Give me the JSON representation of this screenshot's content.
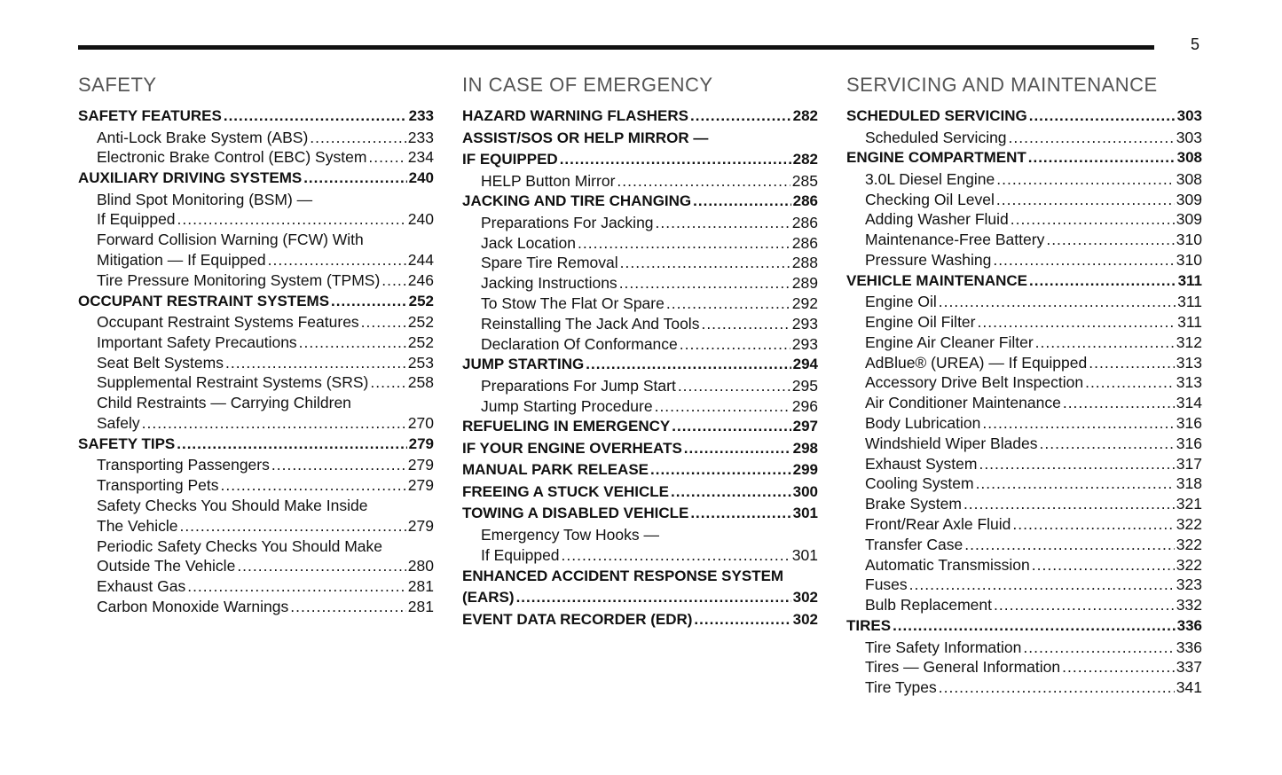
{
  "page_number": "5",
  "columns": [
    {
      "title": "SAFETY",
      "lines": [
        {
          "text": "SAFETY FEATURES",
          "page": "233",
          "bold": true
        },
        {
          "text": "Anti-Lock Brake System (ABS)",
          "page": "233",
          "indent": true
        },
        {
          "text": "Electronic Brake Control (EBC) System",
          "page": "234",
          "indent": true
        },
        {
          "text": "AUXILIARY DRIVING SYSTEMS",
          "page": "240",
          "bold": true
        },
        {
          "text": "Blind Spot Monitoring (BSM) —",
          "indent": true
        },
        {
          "text": "If Equipped",
          "page": "240",
          "indent": true
        },
        {
          "text": "Forward Collision Warning (FCW) With",
          "indent": true
        },
        {
          "text": "Mitigation — If Equipped",
          "page": "244",
          "indent": true
        },
        {
          "text": "Tire Pressure Monitoring System (TPMS)",
          "page": "246",
          "indent": true
        },
        {
          "text": "OCCUPANT RESTRAINT SYSTEMS",
          "page": "252",
          "bold": true
        },
        {
          "text": "Occupant Restraint Systems Features",
          "page": "252",
          "indent": true
        },
        {
          "text": "Important Safety Precautions",
          "page": "252",
          "indent": true
        },
        {
          "text": "Seat Belt Systems",
          "page": "253",
          "indent": true
        },
        {
          "text": "Supplemental Restraint Systems (SRS)",
          "page": "258",
          "indent": true
        },
        {
          "text": "Child Restraints — Carrying Children",
          "indent": true
        },
        {
          "text": "Safely",
          "page": "270",
          "indent": true
        },
        {
          "text": "SAFETY TIPS",
          "page": "279",
          "bold": true
        },
        {
          "text": "Transporting Passengers",
          "page": "279",
          "indent": true
        },
        {
          "text": "Transporting Pets",
          "page": "279",
          "indent": true
        },
        {
          "text": "Safety Checks You Should Make Inside",
          "indent": true
        },
        {
          "text": "The Vehicle",
          "page": "279",
          "indent": true
        },
        {
          "text": "Periodic Safety Checks You Should Make",
          "indent": true
        },
        {
          "text": "Outside The Vehicle",
          "page": "280",
          "indent": true
        },
        {
          "text": "Exhaust Gas",
          "page": "281",
          "indent": true
        },
        {
          "text": "Carbon Monoxide Warnings",
          "page": "281",
          "indent": true
        }
      ]
    },
    {
      "title": "IN CASE OF EMERGENCY",
      "lines": [
        {
          "text": "HAZARD WARNING FLASHERS",
          "page": "282",
          "bold": true
        },
        {
          "text": "ASSIST/SOS OR HELP MIRROR —",
          "bold": true
        },
        {
          "text": "IF EQUIPPED",
          "page": "282",
          "bold": true
        },
        {
          "text": "HELP Button Mirror",
          "page": "285",
          "indent": true
        },
        {
          "text": "JACKING AND TIRE CHANGING",
          "page": "286",
          "bold": true
        },
        {
          "text": "Preparations For Jacking",
          "page": "286",
          "indent": true
        },
        {
          "text": "Jack Location",
          "page": "286",
          "indent": true
        },
        {
          "text": "Spare Tire Removal",
          "page": "288",
          "indent": true
        },
        {
          "text": "Jacking Instructions",
          "page": "289",
          "indent": true
        },
        {
          "text": "To Stow The Flat Or Spare",
          "page": "292",
          "indent": true
        },
        {
          "text": "Reinstalling The Jack And Tools",
          "page": "293",
          "indent": true
        },
        {
          "text": "Declaration Of Conformance",
          "page": "293",
          "indent": true
        },
        {
          "text": "JUMP STARTING",
          "page": "294",
          "bold": true
        },
        {
          "text": "Preparations For Jump Start",
          "page": "295",
          "indent": true
        },
        {
          "text": "Jump Starting Procedure",
          "page": "296",
          "indent": true
        },
        {
          "text": "REFUELING IN EMERGENCY",
          "page": "297",
          "bold": true
        },
        {
          "text": "IF YOUR ENGINE OVERHEATS",
          "page": "298",
          "bold": true
        },
        {
          "text": "MANUAL PARK RELEASE",
          "page": "299",
          "bold": true
        },
        {
          "text": "FREEING A STUCK VEHICLE",
          "page": "300",
          "bold": true
        },
        {
          "text": "TOWING A DISABLED VEHICLE",
          "page": "301",
          "bold": true
        },
        {
          "text": "Emergency Tow Hooks —",
          "indent": true
        },
        {
          "text": "If Equipped",
          "page": "301",
          "indent": true
        },
        {
          "text": "ENHANCED ACCIDENT RESPONSE SYSTEM",
          "bold": true
        },
        {
          "text": "(EARS)",
          "page": "302",
          "bold": true
        },
        {
          "text": "EVENT DATA RECORDER (EDR)",
          "page": "302",
          "bold": true
        }
      ]
    },
    {
      "title": "SERVICING AND MAINTENANCE",
      "lines": [
        {
          "text": "SCHEDULED SERVICING",
          "page": "303",
          "bold": true
        },
        {
          "text": "Scheduled Servicing",
          "page": "303",
          "indent": true
        },
        {
          "text": "ENGINE COMPARTMENT",
          "page": "308",
          "bold": true
        },
        {
          "text": "3.0L Diesel Engine",
          "page": "308",
          "indent": true
        },
        {
          "text": "Checking Oil Level",
          "page": "309",
          "indent": true
        },
        {
          "text": "Adding Washer Fluid",
          "page": "309",
          "indent": true
        },
        {
          "text": "Maintenance-Free Battery",
          "page": "310",
          "indent": true
        },
        {
          "text": "Pressure Washing",
          "page": "310",
          "indent": true
        },
        {
          "text": "VEHICLE MAINTENANCE",
          "page": "311",
          "bold": true
        },
        {
          "text": "Engine Oil",
          "page": "311",
          "indent": true
        },
        {
          "text": "Engine Oil Filter",
          "page": "311",
          "indent": true
        },
        {
          "text": "Engine Air Cleaner Filter",
          "page": "312",
          "indent": true
        },
        {
          "text": "AdBlue® (UREA) — If Equipped",
          "page": "313",
          "indent": true
        },
        {
          "text": "Accessory Drive Belt Inspection",
          "page": "313",
          "indent": true
        },
        {
          "text": "Air Conditioner Maintenance",
          "page": "314",
          "indent": true
        },
        {
          "text": "Body Lubrication",
          "page": "316",
          "indent": true
        },
        {
          "text": "Windshield Wiper Blades",
          "page": "316",
          "indent": true
        },
        {
          "text": "Exhaust System",
          "page": "317",
          "indent": true
        },
        {
          "text": "Cooling System",
          "page": "318",
          "indent": true
        },
        {
          "text": "Brake System",
          "page": "321",
          "indent": true
        },
        {
          "text": "Front/Rear Axle Fluid",
          "page": "322",
          "indent": true
        },
        {
          "text": "Transfer Case",
          "page": "322",
          "indent": true
        },
        {
          "text": "Automatic Transmission",
          "page": "322",
          "indent": true
        },
        {
          "text": "Fuses",
          "page": "323",
          "indent": true
        },
        {
          "text": "Bulb Replacement",
          "page": "332",
          "indent": true
        },
        {
          "text": "TIRES",
          "page": "336",
          "bold": true
        },
        {
          "text": "Tire Safety Information",
          "page": "336",
          "indent": true
        },
        {
          "text": "Tires — General Information",
          "page": "337",
          "indent": true
        },
        {
          "text": "Tire Types",
          "page": "341",
          "indent": true
        }
      ]
    }
  ]
}
